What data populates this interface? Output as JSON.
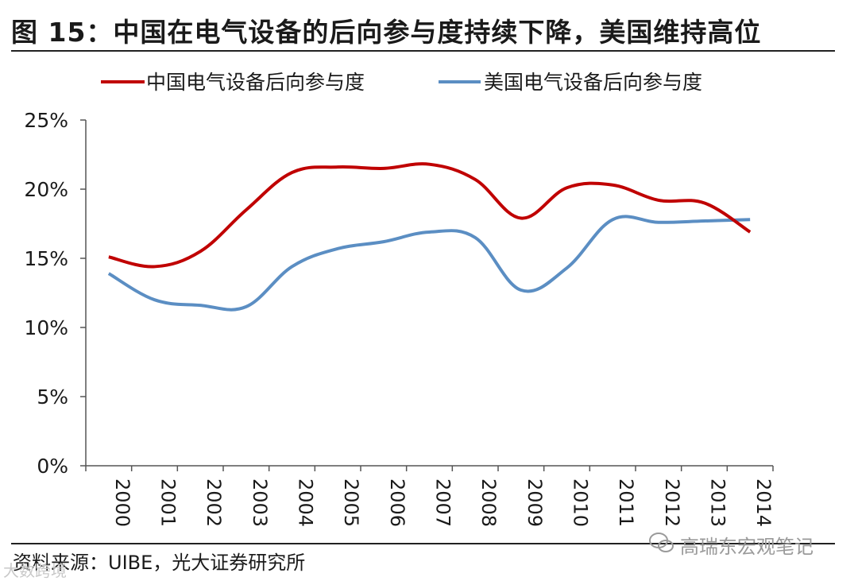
{
  "title": "图 15：中国在电气设备的后向参与度持续下降，美国维持高位",
  "source": "资料来源：UIBE，光大证券研究所",
  "watermark": "高瑞东宏观笔记",
  "corner_mark": "大数跨境",
  "colors": {
    "china": "#c00000",
    "usa": "#5b8ec3",
    "axis": "#555555"
  },
  "chart_data": {
    "type": "line",
    "title": "图 15：中国在电气设备的后向参与度持续下降，美国维持高位",
    "xlabel": "",
    "ylabel": "",
    "x": [
      "2000",
      "2001",
      "2002",
      "2003",
      "2004",
      "2005",
      "2006",
      "2007",
      "2008",
      "2009",
      "2010",
      "2011",
      "2012",
      "2013",
      "2014"
    ],
    "ylim": [
      0,
      25
    ],
    "yticks": [
      0,
      5,
      10,
      15,
      20,
      25
    ],
    "ytick_labels": [
      "0%",
      "5%",
      "10%",
      "15%",
      "20%",
      "25%"
    ],
    "grid": false,
    "legend_position": "top",
    "series": [
      {
        "name": "中国电气设备后向参与度",
        "color": "#c00000",
        "values": [
          15.1,
          14.4,
          15.5,
          18.5,
          21.2,
          21.6,
          21.5,
          21.8,
          20.7,
          17.9,
          20.1,
          20.3,
          19.2,
          19.0,
          16.9
        ]
      },
      {
        "name": "美国电气设备后向参与度",
        "color": "#5b8ec3",
        "values": [
          13.9,
          12.0,
          11.6,
          11.5,
          14.4,
          15.7,
          16.2,
          16.9,
          16.5,
          12.7,
          14.3,
          17.8,
          17.6,
          17.7,
          17.8
        ]
      }
    ]
  }
}
